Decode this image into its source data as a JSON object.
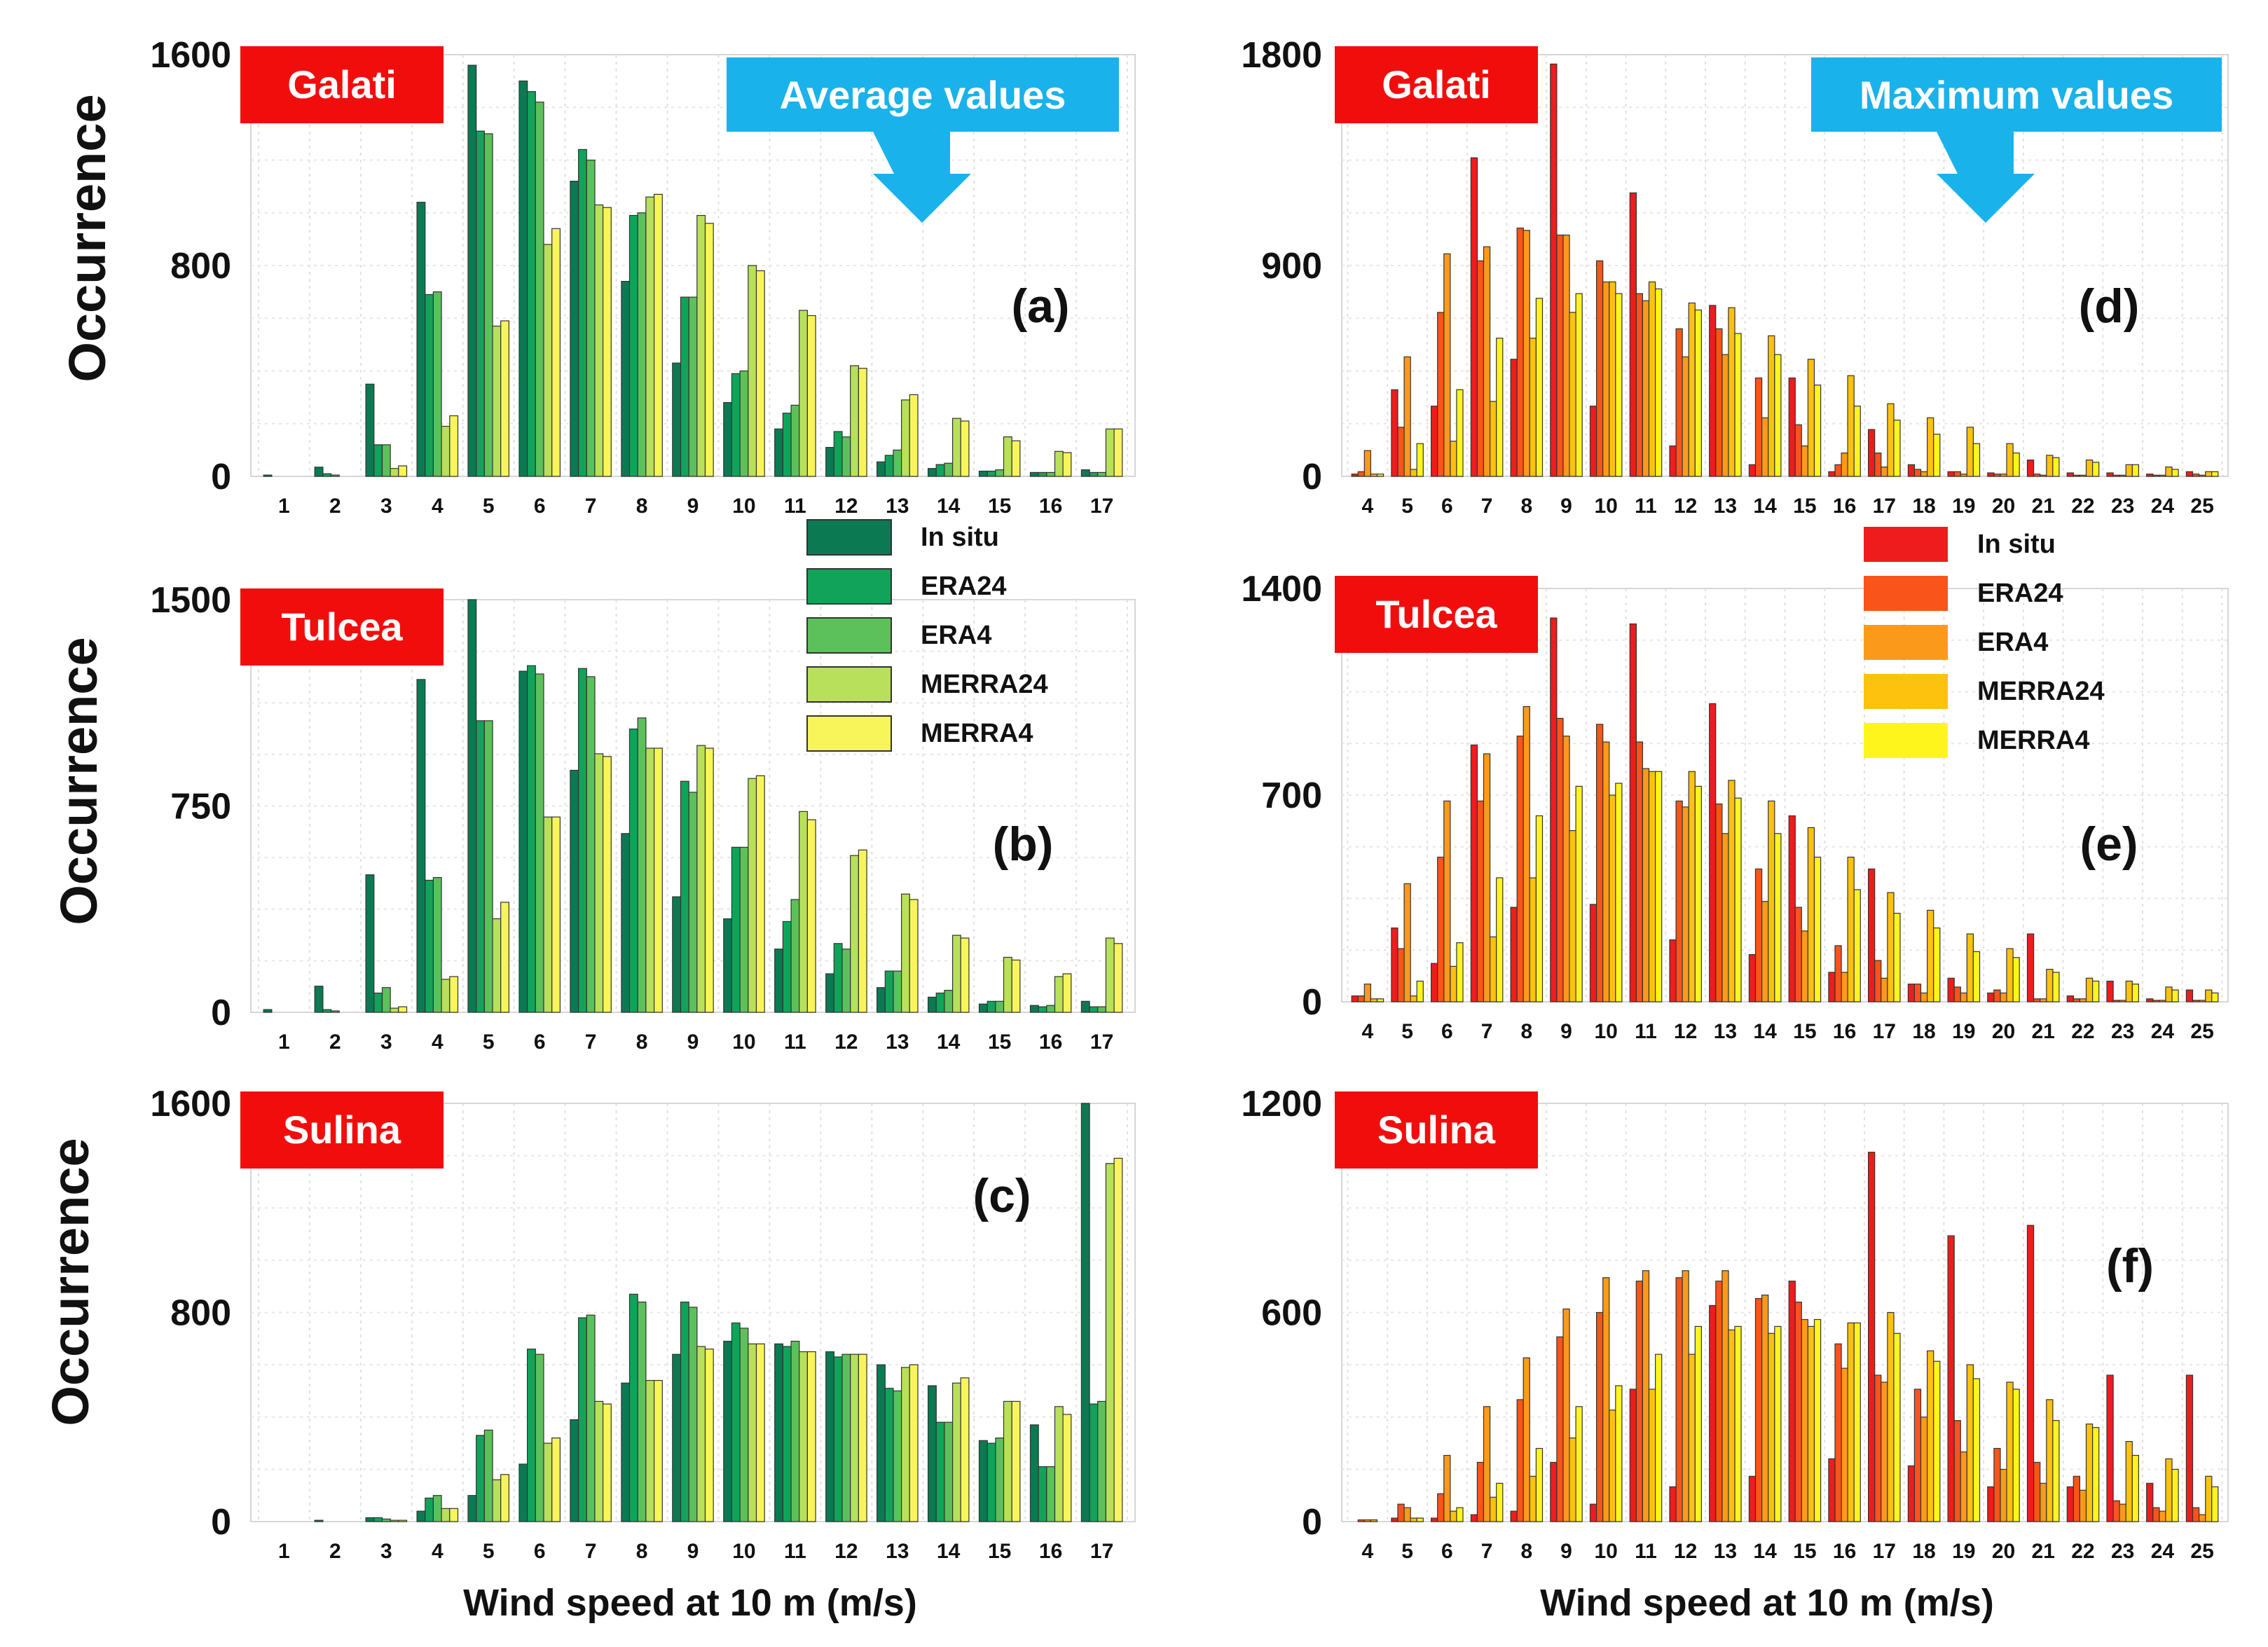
{
  "figure": {
    "y_label": "Occurrence",
    "x_label": "Wind speed at 10 m (m/s)",
    "badges": [
      "Average values",
      "Maximum values"
    ],
    "colors": {
      "station_box": "#f20d0d",
      "badge": "#1ab2ea"
    }
  },
  "legends": [
    {
      "entries": [
        "In situ",
        "ERA24",
        "ERA4",
        "MERRA24",
        "MERRA4"
      ],
      "colors": [
        "#0b7a52",
        "#11a35a",
        "#5cc15a",
        "#b8e05a",
        "#f7f559"
      ]
    },
    {
      "entries": [
        "In situ",
        "ERA24",
        "ERA4",
        "MERRA24",
        "MERRA4"
      ],
      "colors": [
        "#ee1c1c",
        "#f9541a",
        "#fb9a1a",
        "#fdc20e",
        "#fef51c"
      ]
    }
  ],
  "chart_data": [
    {
      "type": "bar",
      "station": "Galati",
      "letter": "(a)",
      "categories": [
        "1",
        "2",
        "3",
        "4",
        "5",
        "6",
        "7",
        "8",
        "9",
        "10",
        "11",
        "12",
        "13",
        "14",
        "15",
        "16",
        "17"
      ],
      "ylim": [
        0,
        1600
      ],
      "yticks": [
        0,
        800,
        1600
      ],
      "series": [
        {
          "name": "In situ",
          "values": [
            5,
            35,
            350,
            1040,
            1560,
            1500,
            1120,
            740,
            430,
            280,
            180,
            110,
            55,
            30,
            20,
            15,
            25
          ]
        },
        {
          "name": "ERA24",
          "values": [
            0,
            10,
            120,
            690,
            1310,
            1460,
            1240,
            990,
            680,
            390,
            240,
            170,
            80,
            45,
            20,
            15,
            15
          ]
        },
        {
          "name": "ERA4",
          "values": [
            0,
            5,
            120,
            700,
            1300,
            1420,
            1200,
            1000,
            680,
            400,
            270,
            150,
            100,
            50,
            25,
            15,
            15
          ]
        },
        {
          "name": "MERRA24",
          "values": [
            0,
            0,
            30,
            190,
            570,
            880,
            1030,
            1060,
            990,
            800,
            630,
            420,
            290,
            220,
            150,
            95,
            180
          ]
        },
        {
          "name": "MERRA4",
          "values": [
            0,
            0,
            40,
            230,
            590,
            940,
            1020,
            1070,
            960,
            780,
            610,
            410,
            310,
            210,
            135,
            90,
            180
          ]
        }
      ]
    },
    {
      "type": "bar",
      "station": "Tulcea",
      "letter": "(b)",
      "categories": [
        "1",
        "2",
        "3",
        "4",
        "5",
        "6",
        "7",
        "8",
        "9",
        "10",
        "11",
        "12",
        "13",
        "14",
        "15",
        "16",
        "17"
      ],
      "ylim": [
        0,
        1500
      ],
      "yticks": [
        0,
        750,
        1500
      ],
      "series": [
        {
          "name": "In situ",
          "values": [
            10,
            95,
            500,
            1210,
            1540,
            1240,
            880,
            650,
            420,
            340,
            230,
            140,
            90,
            55,
            30,
            25,
            40
          ]
        },
        {
          "name": "ERA24",
          "values": [
            0,
            10,
            70,
            480,
            1060,
            1260,
            1250,
            1030,
            840,
            600,
            330,
            250,
            150,
            70,
            40,
            20,
            20
          ]
        },
        {
          "name": "ERA4",
          "values": [
            0,
            5,
            90,
            490,
            1060,
            1230,
            1220,
            1070,
            800,
            600,
            410,
            230,
            150,
            80,
            40,
            25,
            20
          ]
        },
        {
          "name": "MERRA24",
          "values": [
            0,
            0,
            15,
            120,
            340,
            710,
            940,
            960,
            970,
            850,
            730,
            570,
            430,
            280,
            200,
            130,
            270
          ]
        },
        {
          "name": "MERRA4",
          "values": [
            0,
            0,
            20,
            130,
            400,
            710,
            930,
            960,
            960,
            860,
            700,
            590,
            410,
            270,
            190,
            140,
            250
          ]
        }
      ]
    },
    {
      "type": "bar",
      "station": "Sulina",
      "letter": "(c)",
      "categories": [
        "1",
        "2",
        "3",
        "4",
        "5",
        "6",
        "7",
        "8",
        "9",
        "10",
        "11",
        "12",
        "13",
        "14",
        "15",
        "16",
        "17"
      ],
      "ylim": [
        0,
        1600
      ],
      "yticks": [
        0,
        800,
        1600
      ],
      "series": [
        {
          "name": "In situ",
          "values": [
            0,
            5,
            15,
            40,
            100,
            220,
            390,
            530,
            640,
            690,
            680,
            650,
            600,
            520,
            310,
            370,
            1600
          ]
        },
        {
          "name": "ERA24",
          "values": [
            0,
            0,
            15,
            90,
            330,
            660,
            780,
            870,
            840,
            760,
            670,
            630,
            510,
            380,
            300,
            210,
            450
          ]
        },
        {
          "name": "ERA4",
          "values": [
            0,
            0,
            10,
            100,
            350,
            640,
            790,
            840,
            820,
            740,
            690,
            640,
            500,
            380,
            320,
            210,
            460
          ]
        },
        {
          "name": "MERRA24",
          "values": [
            0,
            0,
            5,
            50,
            160,
            300,
            460,
            540,
            670,
            680,
            650,
            640,
            590,
            530,
            460,
            440,
            1370
          ]
        },
        {
          "name": "MERRA4",
          "values": [
            0,
            0,
            5,
            50,
            180,
            320,
            450,
            540,
            660,
            680,
            650,
            640,
            600,
            550,
            460,
            410,
            1390
          ]
        }
      ]
    },
    {
      "type": "bar",
      "station": "Galati",
      "letter": "(d)",
      "categories": [
        "4",
        "5",
        "6",
        "7",
        "8",
        "9",
        "10",
        "11",
        "12",
        "13",
        "14",
        "15",
        "16",
        "17",
        "18",
        "19",
        "20",
        "21",
        "22",
        "23",
        "24",
        "25"
      ],
      "ylim": [
        0,
        1800
      ],
      "yticks": [
        0,
        900,
        1800
      ],
      "series": [
        {
          "name": "In situ",
          "values": [
            10,
            370,
            300,
            1360,
            500,
            1760,
            300,
            1210,
            130,
            730,
            50,
            420,
            20,
            200,
            50,
            20,
            15,
            70,
            15,
            15,
            10,
            20
          ]
        },
        {
          "name": "ERA24",
          "values": [
            20,
            210,
            700,
            920,
            1060,
            1030,
            920,
            780,
            630,
            630,
            420,
            220,
            50,
            100,
            30,
            20,
            10,
            10,
            5,
            5,
            5,
            10
          ]
        },
        {
          "name": "ERA4",
          "values": [
            110,
            510,
            950,
            980,
            1050,
            1030,
            830,
            750,
            510,
            520,
            250,
            130,
            100,
            40,
            20,
            10,
            10,
            5,
            5,
            5,
            5,
            5
          ]
        },
        {
          "name": "MERRA24",
          "values": [
            10,
            30,
            150,
            320,
            590,
            700,
            830,
            830,
            740,
            720,
            600,
            500,
            430,
            310,
            250,
            210,
            140,
            90,
            70,
            50,
            40,
            20
          ]
        },
        {
          "name": "MERRA4",
          "values": [
            10,
            140,
            370,
            590,
            760,
            780,
            780,
            800,
            710,
            610,
            520,
            390,
            300,
            240,
            180,
            140,
            100,
            80,
            60,
            50,
            30,
            20
          ]
        }
      ]
    },
    {
      "type": "bar",
      "station": "Tulcea",
      "letter": "(e)",
      "categories": [
        "4",
        "5",
        "6",
        "7",
        "8",
        "9",
        "10",
        "11",
        "12",
        "13",
        "14",
        "15",
        "16",
        "17",
        "18",
        "19",
        "20",
        "21",
        "22",
        "23",
        "24",
        "25"
      ],
      "ylim": [
        0,
        1400
      ],
      "yticks": [
        0,
        700,
        1400
      ],
      "series": [
        {
          "name": "In situ",
          "values": [
            20,
            250,
            130,
            870,
            320,
            1300,
            330,
            1280,
            210,
            1010,
            160,
            630,
            100,
            450,
            60,
            80,
            30,
            230,
            20,
            70,
            10,
            40
          ]
        },
        {
          "name": "ERA24",
          "values": [
            20,
            180,
            490,
            680,
            900,
            960,
            940,
            880,
            680,
            670,
            450,
            320,
            190,
            140,
            60,
            50,
            40,
            10,
            10,
            5,
            5,
            5
          ]
        },
        {
          "name": "ERA4",
          "values": [
            60,
            400,
            680,
            840,
            1000,
            900,
            880,
            790,
            660,
            570,
            340,
            240,
            100,
            80,
            30,
            30,
            30,
            10,
            10,
            5,
            5,
            5
          ]
        },
        {
          "name": "MERRA24",
          "values": [
            10,
            20,
            120,
            220,
            420,
            580,
            700,
            780,
            780,
            750,
            680,
            590,
            490,
            370,
            310,
            230,
            180,
            110,
            80,
            70,
            50,
            40
          ]
        },
        {
          "name": "MERRA4",
          "values": [
            10,
            70,
            200,
            420,
            630,
            730,
            740,
            780,
            730,
            690,
            570,
            490,
            380,
            300,
            250,
            170,
            150,
            100,
            70,
            60,
            40,
            30
          ]
        }
      ]
    },
    {
      "type": "bar",
      "station": "Sulina",
      "letter": "(f)",
      "categories": [
        "4",
        "5",
        "6",
        "7",
        "8",
        "9",
        "10",
        "11",
        "12",
        "13",
        "14",
        "15",
        "16",
        "17",
        "18",
        "19",
        "20",
        "21",
        "22",
        "23",
        "24",
        "25"
      ],
      "ylim": [
        0,
        1200
      ],
      "yticks": [
        0,
        600,
        1200
      ],
      "series": [
        {
          "name": "In situ",
          "values": [
            0,
            10,
            10,
            20,
            30,
            170,
            50,
            380,
            100,
            620,
            130,
            690,
            180,
            1060,
            160,
            820,
            100,
            850,
            100,
            420,
            110,
            420
          ]
        },
        {
          "name": "ERA24",
          "values": [
            5,
            50,
            80,
            170,
            350,
            530,
            600,
            690,
            700,
            690,
            640,
            630,
            510,
            420,
            380,
            290,
            210,
            170,
            130,
            60,
            40,
            40
          ]
        },
        {
          "name": "ERA4",
          "values": [
            5,
            40,
            190,
            330,
            470,
            610,
            700,
            720,
            720,
            720,
            650,
            580,
            440,
            400,
            300,
            200,
            150,
            110,
            90,
            50,
            30,
            20
          ]
        },
        {
          "name": "MERRA24",
          "values": [
            5,
            10,
            30,
            70,
            130,
            240,
            320,
            380,
            480,
            550,
            540,
            560,
            570,
            600,
            490,
            450,
            400,
            350,
            280,
            230,
            180,
            130
          ]
        },
        {
          "name": "MERRA4",
          "values": [
            0,
            10,
            40,
            110,
            210,
            330,
            390,
            480,
            560,
            560,
            560,
            580,
            570,
            540,
            460,
            410,
            380,
            290,
            270,
            190,
            150,
            100
          ]
        }
      ]
    }
  ]
}
